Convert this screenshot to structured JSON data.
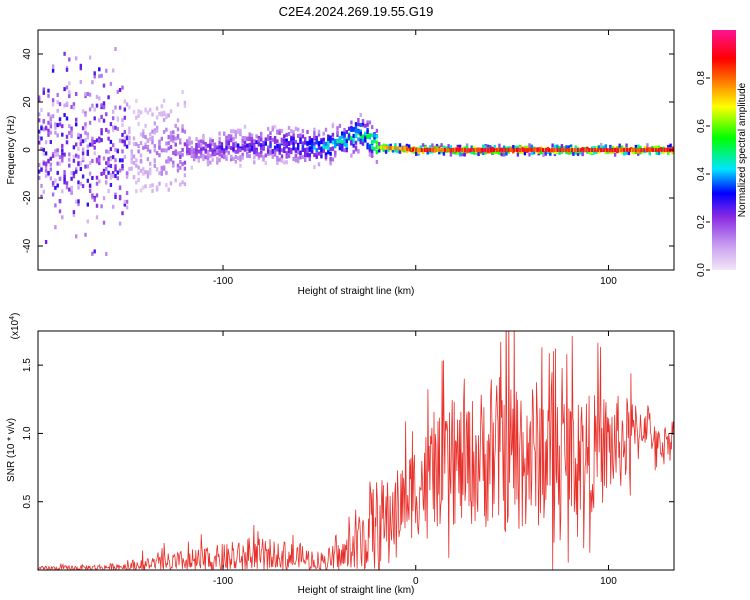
{
  "title": "C2E4.2024.269.19.55.G19",
  "chart_data": [
    {
      "type": "heatmap",
      "xlabel": "Height of straight line (km)",
      "ylabel": "Frequency (Hz)",
      "xlim": [
        -196,
        134
      ],
      "ylim": [
        -50,
        50
      ],
      "xticks": [
        -100,
        0,
        100
      ],
      "xtick_labels": [
        "-100",
        "",
        "100"
      ],
      "yticks": [
        -40,
        -20,
        0,
        20,
        40
      ],
      "ytick_labels": [
        "-40",
        "-20",
        "0",
        "20",
        "40"
      ],
      "colorbar": {
        "label": "Normalized spectral amplitude",
        "range": [
          0,
          1
        ],
        "ticks": [
          0.0,
          0.2,
          0.4,
          0.6,
          0.8
        ],
        "tick_labels": [
          "0.0",
          "0.2",
          "0.4",
          "0.6",
          "0.8"
        ],
        "colors": [
          "#f4e6f8",
          "#8a2be2",
          "#0000ff",
          "#00e5ff",
          "#00ff00",
          "#ffff00",
          "#ff8000",
          "#ff0000",
          "#ff1493"
        ]
      },
      "ridge": {
        "x": [
          -196,
          -150,
          -120,
          -100,
          -80,
          -60,
          -50,
          -40,
          -30,
          -25,
          -20,
          -15,
          0,
          50,
          100,
          134
        ],
        "frequency": [
          0,
          0,
          0,
          1,
          2,
          2,
          1,
          3,
          7,
          5,
          1,
          1,
          0,
          0,
          0,
          0
        ],
        "amplitude": [
          0.05,
          0.1,
          0.2,
          0.25,
          0.3,
          0.35,
          0.4,
          0.45,
          0.5,
          0.5,
          0.7,
          0.8,
          0.9,
          0.95,
          0.95,
          0.95
        ]
      }
    },
    {
      "type": "line",
      "xlabel": "Height of straight line (km)",
      "ylabel": "SNR (10 * v/v)",
      "y_scale_label": "(x10",
      "y_scale_exp": "4",
      "y_scale_close": ")",
      "xlim": [
        -196,
        134
      ],
      "ylim": [
        0,
        1.75
      ],
      "xticks": [
        -100,
        0,
        100
      ],
      "xtick_labels": [
        "-100",
        "0",
        "100"
      ],
      "yticks": [
        0.5,
        1.0,
        1.5
      ],
      "ytick_labels": [
        "0.5",
        "1.0",
        "1.5"
      ],
      "color": "#e8302a",
      "envelope": {
        "x": [
          -196,
          -160,
          -140,
          -120,
          -100,
          -80,
          -60,
          -50,
          -40,
          -35,
          -30,
          -25,
          -20,
          -15,
          -10,
          0,
          10,
          20,
          30,
          40,
          50,
          60,
          70,
          80,
          90,
          100,
          110,
          115,
          120,
          125,
          130,
          134
        ],
        "base": [
          0.01,
          0.02,
          0.03,
          0.05,
          0.07,
          0.09,
          0.08,
          0.06,
          0.08,
          0.12,
          0.18,
          0.25,
          0.32,
          0.35,
          0.45,
          0.6,
          0.7,
          0.75,
          0.8,
          0.85,
          0.85,
          0.85,
          0.85,
          0.85,
          0.85,
          0.9,
          0.95,
          1.0,
          1.1,
          0.9,
          0.95,
          1.0
        ],
        "amp": [
          0.02,
          0.03,
          0.08,
          0.12,
          0.15,
          0.18,
          0.15,
          0.1,
          0.15,
          0.2,
          0.3,
          0.5,
          0.45,
          0.4,
          0.35,
          0.45,
          0.5,
          0.55,
          0.6,
          0.7,
          0.75,
          0.7,
          0.65,
          0.6,
          0.55,
          0.5,
          0.4,
          0.3,
          0.2,
          0.15,
          0.15,
          0.15
        ]
      }
    }
  ]
}
